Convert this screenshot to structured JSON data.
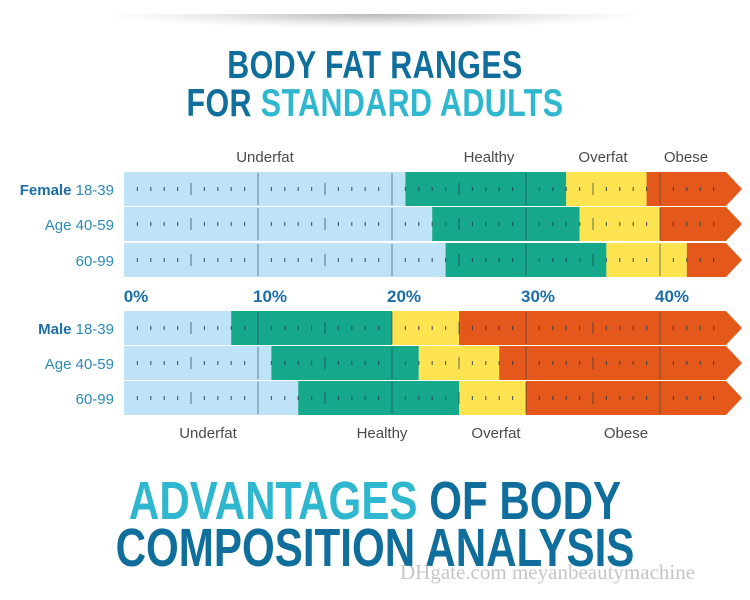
{
  "title": {
    "line1": "BODY FAT RANGES",
    "line2_prefix": "FOR ",
    "line2_highlight": "STANDARD ADULTS"
  },
  "colors": {
    "underfat": "#bfe3f6",
    "healthy": "#16a88a",
    "overfat": "#fde34f",
    "obese": "#e5581b",
    "label_dark": "#1b6ea6",
    "label_light": "#2a8ab8",
    "title_dark": "#0f6e9c",
    "title_light": "#2fb7cf"
  },
  "chart_data": {
    "type": "bar",
    "xlim": [
      0,
      45
    ],
    "x_ticks": [
      "0%",
      "10%",
      "20%",
      "30%",
      "40%"
    ],
    "x_tick_values": [
      0,
      10,
      20,
      30,
      40
    ],
    "top_categories": [
      "Underfat",
      "Healthy",
      "Overfat",
      "Obese"
    ],
    "bottom_categories": [
      "Underfat",
      "Healthy",
      "Overfat",
      "Obese"
    ],
    "female": [
      {
        "group": "Female",
        "age": "18-39",
        "boundaries": [
          21,
          33,
          39
        ]
      },
      {
        "group": "",
        "age": "Age 40-59",
        "boundaries": [
          23,
          34,
          40
        ]
      },
      {
        "group": "",
        "age": "60-99",
        "boundaries": [
          24,
          36,
          42
        ]
      }
    ],
    "male": [
      {
        "group": "Male",
        "age": "18-39",
        "boundaries": [
          8,
          20,
          25
        ]
      },
      {
        "group": "",
        "age": "Age 40-59",
        "boundaries": [
          11,
          22,
          28
        ]
      },
      {
        "group": "",
        "age": "60-99",
        "boundaries": [
          13,
          25,
          30
        ]
      }
    ]
  },
  "bottom_title": {
    "line1_highlight": "ADVANTAGES",
    "line1_rest": " OF BODY",
    "line2": "COMPOSITION ANALYSIS"
  },
  "watermark": "DHgate.com meyanbeautymachine"
}
